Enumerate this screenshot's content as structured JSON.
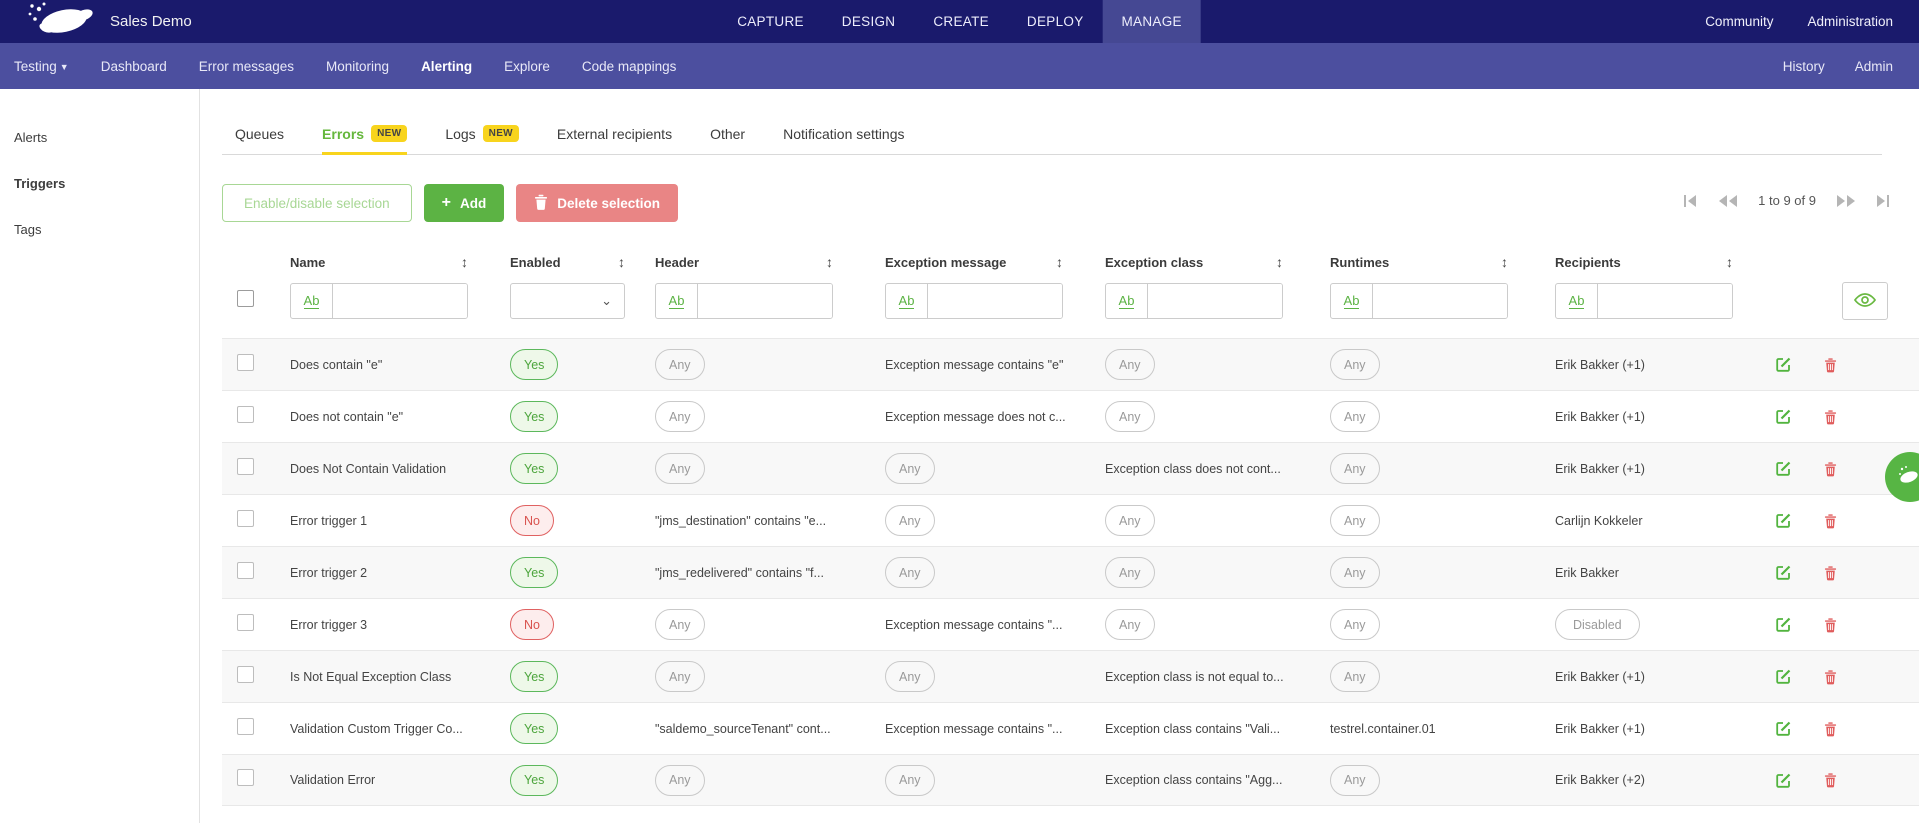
{
  "topbar": {
    "product_name": "Sales Demo",
    "menu": [
      "CAPTURE",
      "DESIGN",
      "CREATE",
      "DEPLOY",
      "MANAGE"
    ],
    "active_item": "MANAGE",
    "right": [
      "Community",
      "Administration"
    ]
  },
  "secondbar": {
    "project": "Testing",
    "items": [
      "Dashboard",
      "Error messages",
      "Monitoring",
      "Alerting",
      "Explore",
      "Code mappings"
    ],
    "active_item": "Alerting",
    "right": [
      "History",
      "Admin"
    ]
  },
  "sidebar": {
    "items": [
      {
        "label": "Alerts",
        "active": false
      },
      {
        "label": "Triggers",
        "active": true
      },
      {
        "label": "Tags",
        "active": false
      }
    ]
  },
  "tabs": [
    {
      "label": "Queues"
    },
    {
      "label": "Errors",
      "badge": "NEW",
      "active": true
    },
    {
      "label": "Logs",
      "badge": "NEW"
    },
    {
      "label": "External recipients"
    },
    {
      "label": "Other"
    },
    {
      "label": "Notification settings"
    }
  ],
  "toolbar": {
    "enable_disable_label": "Enable/disable selection",
    "add_label": "Add",
    "delete_label": "Delete selection"
  },
  "pagination": {
    "label": "1 to 9 of 9"
  },
  "table": {
    "columns": [
      "Name",
      "Enabled",
      "Header",
      "Exception message",
      "Exception class",
      "Runtimes",
      "Recipients"
    ],
    "filter_prefix": "Ab",
    "rows": [
      {
        "name": "Does contain \"e\"",
        "enabled": "Yes",
        "header": {
          "kind": "pill",
          "text": "Any"
        },
        "exception_message": {
          "kind": "text",
          "text": "Exception message contains \"e\""
        },
        "exception_class": {
          "kind": "pill",
          "text": "Any"
        },
        "runtimes": {
          "kind": "pill",
          "text": "Any"
        },
        "recipients": {
          "kind": "text",
          "text": "Erik Bakker (+1)"
        }
      },
      {
        "name": "Does not contain \"e\"",
        "enabled": "Yes",
        "header": {
          "kind": "pill",
          "text": "Any"
        },
        "exception_message": {
          "kind": "text",
          "text": "Exception message does not c..."
        },
        "exception_class": {
          "kind": "pill",
          "text": "Any"
        },
        "runtimes": {
          "kind": "pill",
          "text": "Any"
        },
        "recipients": {
          "kind": "text",
          "text": "Erik Bakker (+1)"
        }
      },
      {
        "name": "Does Not Contain Validation",
        "enabled": "Yes",
        "header": {
          "kind": "pill",
          "text": "Any"
        },
        "exception_message": {
          "kind": "pill",
          "text": "Any"
        },
        "exception_class": {
          "kind": "text",
          "text": "Exception class does not cont..."
        },
        "runtimes": {
          "kind": "pill",
          "text": "Any"
        },
        "recipients": {
          "kind": "text",
          "text": "Erik Bakker (+1)"
        }
      },
      {
        "name": "Error trigger 1",
        "enabled": "No",
        "header": {
          "kind": "text",
          "text": "\"jms_destination\" contains \"e..."
        },
        "exception_message": {
          "kind": "pill",
          "text": "Any"
        },
        "exception_class": {
          "kind": "pill",
          "text": "Any"
        },
        "runtimes": {
          "kind": "pill",
          "text": "Any"
        },
        "recipients": {
          "kind": "text",
          "text": "Carlijn Kokkeler"
        }
      },
      {
        "name": "Error trigger 2",
        "enabled": "Yes",
        "header": {
          "kind": "text",
          "text": "\"jms_redelivered\" contains \"f..."
        },
        "exception_message": {
          "kind": "pill",
          "text": "Any"
        },
        "exception_class": {
          "kind": "pill",
          "text": "Any"
        },
        "runtimes": {
          "kind": "pill",
          "text": "Any"
        },
        "recipients": {
          "kind": "text",
          "text": "Erik Bakker"
        }
      },
      {
        "name": "Error trigger 3",
        "enabled": "No",
        "header": {
          "kind": "pill",
          "text": "Any"
        },
        "exception_message": {
          "kind": "text",
          "text": "Exception message contains \"..."
        },
        "exception_class": {
          "kind": "pill",
          "text": "Any"
        },
        "runtimes": {
          "kind": "pill",
          "text": "Any"
        },
        "recipients": {
          "kind": "pill",
          "text": "Disabled"
        }
      },
      {
        "name": "Is Not Equal Exception Class",
        "enabled": "Yes",
        "header": {
          "kind": "pill",
          "text": "Any"
        },
        "exception_message": {
          "kind": "pill",
          "text": "Any"
        },
        "exception_class": {
          "kind": "text",
          "text": "Exception class is not equal to..."
        },
        "runtimes": {
          "kind": "pill",
          "text": "Any"
        },
        "recipients": {
          "kind": "text",
          "text": "Erik Bakker (+1)"
        }
      },
      {
        "name": "Validation Custom Trigger Co...",
        "enabled": "Yes",
        "header": {
          "kind": "text",
          "text": "\"saldemo_sourceTenant\" cont..."
        },
        "exception_message": {
          "kind": "text",
          "text": "Exception message contains \"..."
        },
        "exception_class": {
          "kind": "text",
          "text": "Exception class contains \"Vali..."
        },
        "runtimes": {
          "kind": "text",
          "text": "testrel.container.01"
        },
        "recipients": {
          "kind": "text",
          "text": "Erik Bakker (+1)"
        }
      },
      {
        "name": "Validation Error",
        "enabled": "Yes",
        "header": {
          "kind": "pill",
          "text": "Any"
        },
        "exception_message": {
          "kind": "pill",
          "text": "Any"
        },
        "exception_class": {
          "kind": "text",
          "text": "Exception class contains \"Agg..."
        },
        "runtimes": {
          "kind": "pill",
          "text": "Any"
        },
        "recipients": {
          "kind": "text",
          "text": "Erik Bakker (+2)"
        }
      }
    ]
  },
  "colors": {
    "topbar": "#1a1a6c",
    "secondbar": "#4c4f9f",
    "accent_green": "#5cb344",
    "danger_red": "#e06161",
    "badge_yellow": "#f8d41d"
  }
}
